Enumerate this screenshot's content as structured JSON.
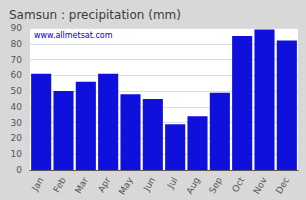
{
  "chart_data": {
    "type": "bar",
    "title": "Samsun : precipitation (mm)",
    "categories": [
      "Jan",
      "Feb",
      "Mar",
      "Apr",
      "May",
      "Jun",
      "Jul",
      "Aug",
      "Sep",
      "Oct",
      "Nov",
      "Dec"
    ],
    "values": [
      61,
      50,
      56,
      61,
      48,
      45,
      29,
      34,
      49,
      85,
      89,
      82
    ],
    "color": "#1010dd",
    "ylim": [
      0,
      90
    ],
    "yticks": [
      0,
      10,
      20,
      30,
      40,
      50,
      60,
      70,
      80,
      90
    ],
    "grid": true,
    "annotation": "www.allmetsat.com"
  }
}
